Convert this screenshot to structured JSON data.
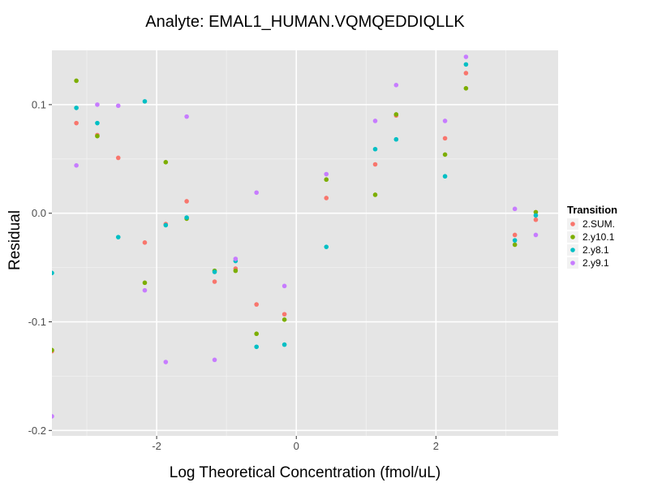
{
  "chart_data": {
    "type": "scatter",
    "title": "Analyte: EMAL1_HUMAN.VQMQEDDIQLLK",
    "xlabel": "Log Theoretical Concentration (fmol/uL)",
    "ylabel": "Residual",
    "xlim": [
      -3.5,
      3.75
    ],
    "ylim": [
      -0.205,
      0.15
    ],
    "x_ticks": [
      -2,
      0,
      2
    ],
    "x_tick_labels": [
      "-2",
      "0",
      "2"
    ],
    "y_ticks": [
      -0.2,
      -0.1,
      0.0,
      0.1
    ],
    "y_tick_labels": [
      "-0.2",
      "-0.1",
      "0.0",
      "0.1"
    ],
    "grid": true,
    "legend": {
      "title": "Transition",
      "position": "right"
    },
    "series": [
      {
        "name": "2.SUM.",
        "color": "#F8766D",
        "x": [
          -3.5,
          -3.15,
          -2.85,
          -2.55,
          -2.17,
          -1.87,
          -1.57,
          -1.17,
          -0.87,
          -0.57,
          -0.17,
          0.43,
          1.13,
          1.43,
          2.13,
          2.43,
          3.13,
          3.43
        ],
        "y": [
          -0.127,
          0.083,
          0.072,
          0.051,
          -0.027,
          -0.01,
          0.011,
          -0.063,
          -0.051,
          -0.084,
          -0.093,
          0.014,
          0.045,
          0.09,
          0.069,
          0.129,
          -0.02,
          -0.006
        ]
      },
      {
        "name": "2.y10.1",
        "color": "#7CAE00",
        "x": [
          -3.5,
          -3.15,
          -2.85,
          -2.17,
          -1.87,
          -1.57,
          -1.17,
          -0.87,
          -0.57,
          -0.17,
          0.43,
          1.13,
          1.43,
          2.13,
          2.43,
          3.13,
          3.43
        ],
        "y": [
          -0.126,
          0.122,
          0.071,
          -0.064,
          0.047,
          -0.005,
          -0.053,
          -0.053,
          -0.111,
          -0.098,
          0.031,
          0.017,
          0.091,
          0.054,
          0.115,
          -0.029,
          0.001
        ]
      },
      {
        "name": "2.y8.1",
        "color": "#00BFC4",
        "x": [
          -3.5,
          -3.15,
          -2.85,
          -2.55,
          -2.17,
          -1.87,
          -1.57,
          -1.17,
          -0.87,
          -0.57,
          -0.17,
          0.43,
          1.13,
          1.43,
          2.13,
          2.43,
          3.13,
          3.43
        ],
        "y": [
          -0.055,
          0.097,
          0.083,
          -0.022,
          0.103,
          -0.011,
          -0.004,
          -0.054,
          -0.044,
          -0.123,
          -0.121,
          -0.031,
          0.059,
          0.068,
          0.034,
          0.137,
          -0.025,
          -0.002
        ]
      },
      {
        "name": "2.y9.1",
        "color": "#C77CFF",
        "x": [
          -3.5,
          -3.15,
          -2.85,
          -2.55,
          -2.17,
          -1.87,
          -1.57,
          -1.17,
          -0.87,
          -0.57,
          -0.17,
          0.43,
          1.13,
          1.43,
          2.13,
          2.43,
          3.13,
          3.43
        ],
        "y": [
          -0.187,
          0.044,
          0.1,
          0.099,
          -0.071,
          -0.137,
          0.089,
          -0.135,
          -0.042,
          0.019,
          -0.067,
          0.036,
          0.085,
          0.118,
          0.085,
          0.144,
          0.004,
          -0.02
        ]
      }
    ]
  }
}
